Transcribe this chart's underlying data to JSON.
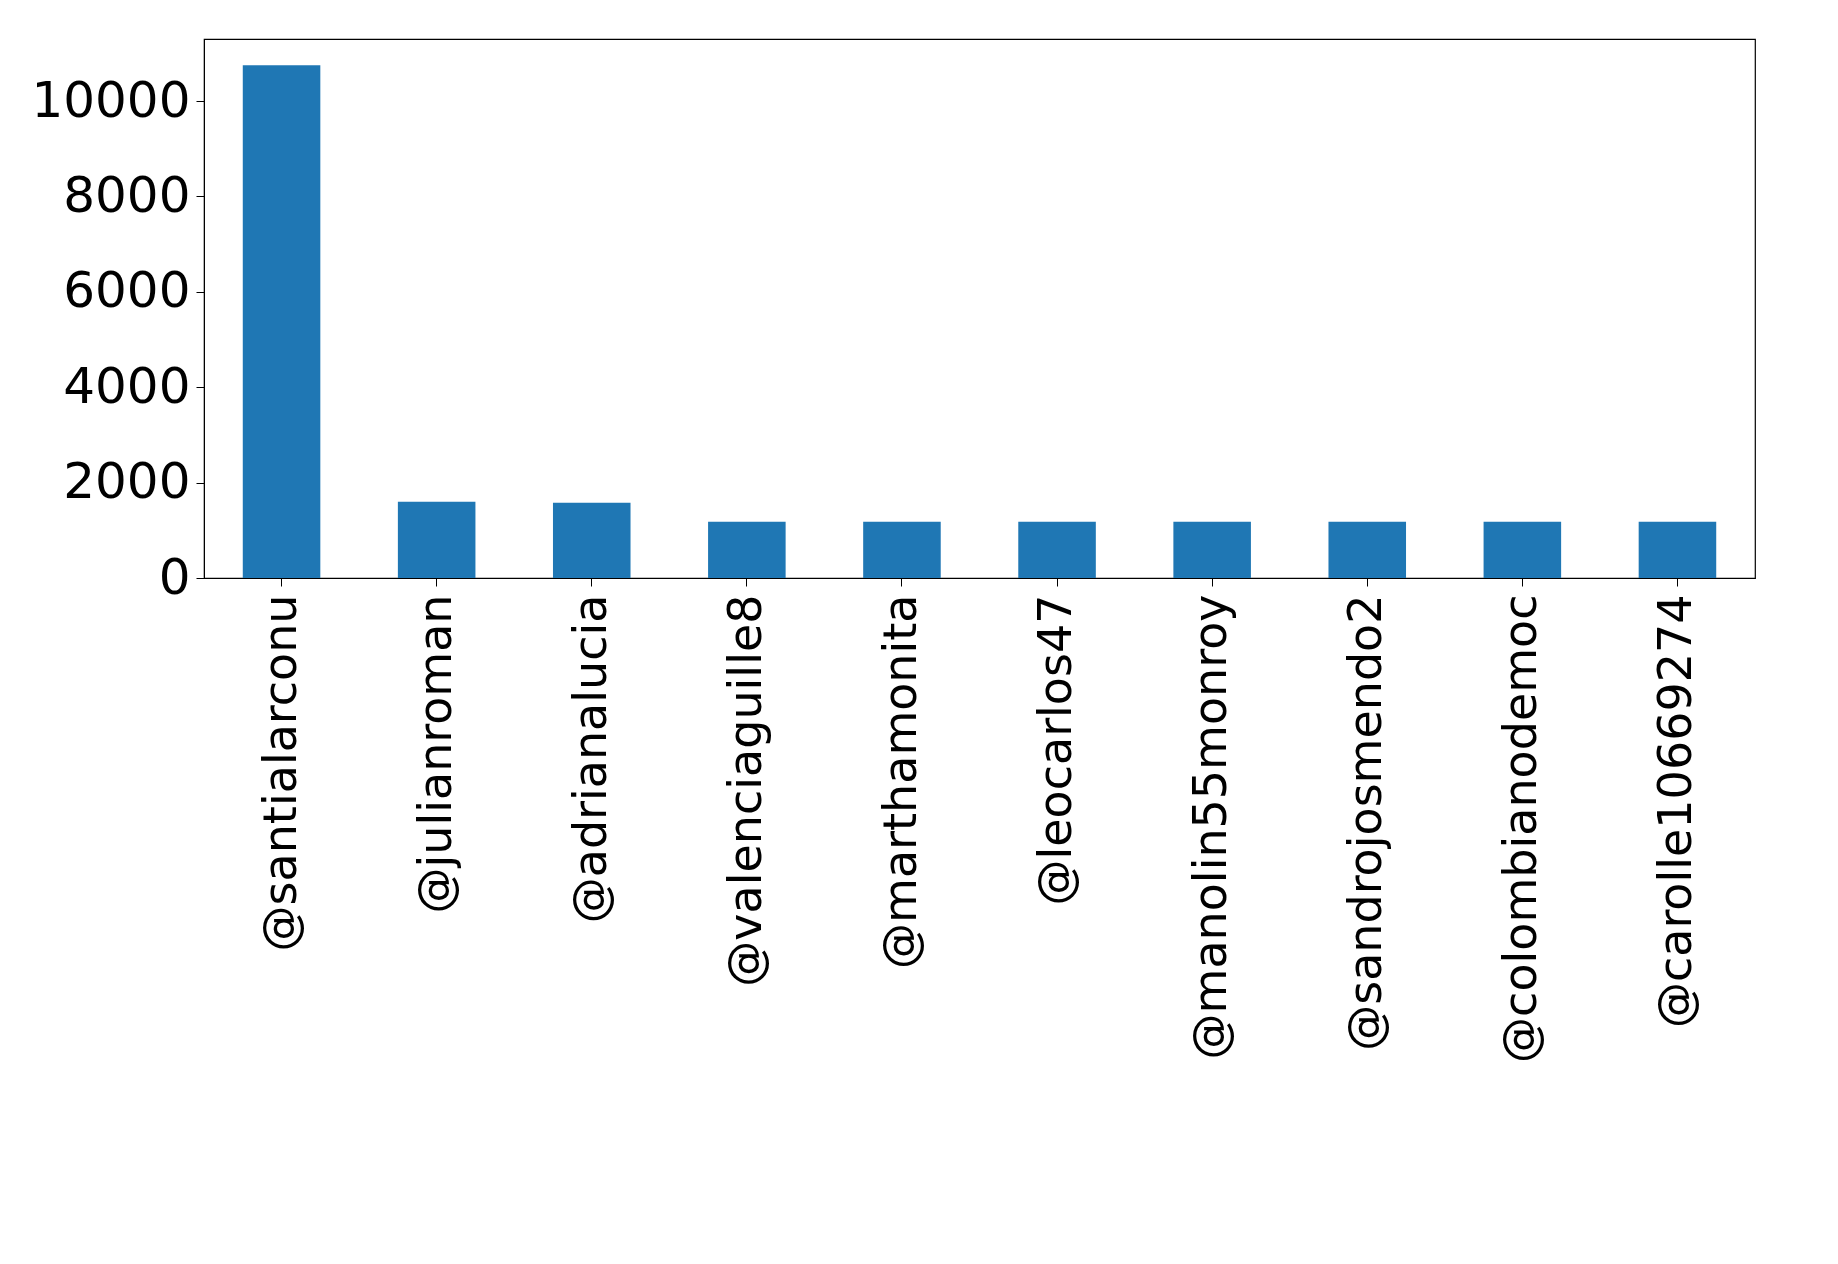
{
  "chart_data": {
    "type": "bar",
    "categories": [
      "@santialarconu",
      "@julianroman",
      "@adrianalucia",
      "@valenciaguille8",
      "@marthamonita",
      "@leocarlos47",
      "@manolin55monroy",
      "@sandrojosmendo2",
      "@colombianodemoc",
      "@carolle10669274"
    ],
    "values": [
      10750,
      1600,
      1580,
      1180,
      1180,
      1180,
      1180,
      1180,
      1180,
      1180
    ],
    "color": "#1f77b4",
    "ylim": [
      0,
      11300
    ],
    "yticks": [
      0,
      2000,
      4000,
      6000,
      8000,
      10000
    ],
    "grid": false
  }
}
